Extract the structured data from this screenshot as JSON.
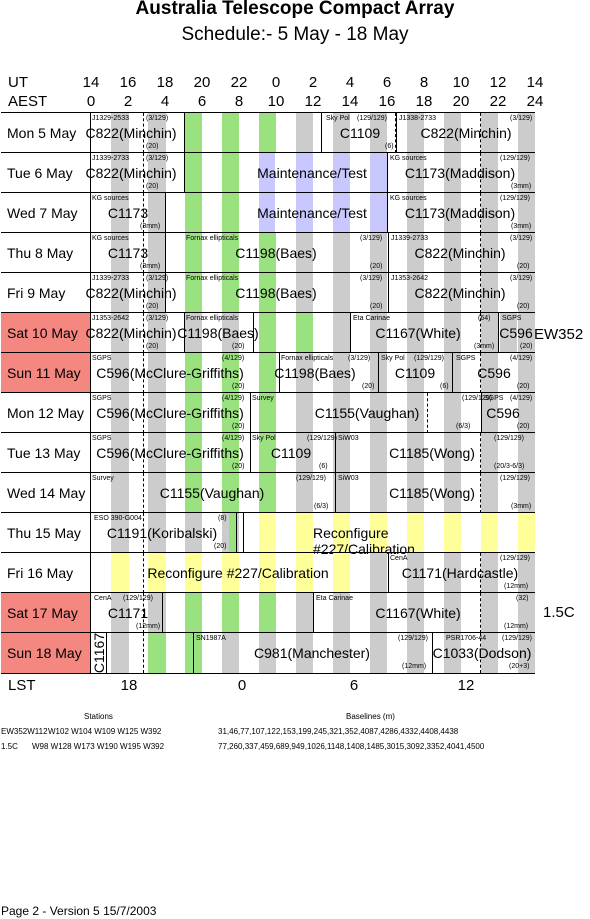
{
  "title": "Australia Telescope Compact Array",
  "subtitle": "Schedule:- 5  May - 18 May",
  "axes": {
    "ut_label": "UT",
    "aest_label": "AEST",
    "lst_label": "LST",
    "ut_ticks": [
      "14",
      "16",
      "18",
      "20",
      "22",
      "0",
      "2",
      "4",
      "6",
      "8",
      "10",
      "12",
      "14"
    ],
    "aest_ticks": [
      "0",
      "2",
      "4",
      "6",
      "8",
      "10",
      "12",
      "14",
      "16",
      "18",
      "20",
      "22",
      "24"
    ],
    "lst_ticks": [
      "18",
      "0",
      "6",
      "12"
    ]
  },
  "colors": {
    "weekend": "#f4877f",
    "green": "#99e27f",
    "gray": "#cccccc",
    "lavender": "#c8c8ff",
    "yellow": "#ffff99"
  },
  "days": [
    {
      "label": "Mon  5  May",
      "weekend": false,
      "small": [
        "J1329-2533",
        "(3/129)",
        "(20)",
        "Sky Pol",
        "(129/129)",
        "(6)",
        "J1338-2733",
        "(3/129)"
      ],
      "big": [
        "C822(Minchin)",
        "C1109",
        "C822(Minchin)"
      ]
    },
    {
      "label": "Tue  6  May",
      "weekend": false,
      "small": [
        "J1339-2733",
        "(3/129)",
        "(20)",
        "KG sources",
        "(129/129)",
        "(3mm)"
      ],
      "big": [
        "C822(Minchin)",
        "Maintenance/Test",
        "C1173(Maddison)"
      ]
    },
    {
      "label": "Wed  7  May",
      "weekend": false,
      "small": [
        "KG sources",
        "(3mm)",
        "KG sources",
        "(129/129)",
        "(3mm)"
      ],
      "big": [
        "C1173",
        "Maintenance/Test",
        "C1173(Maddison)"
      ]
    },
    {
      "label": "Thu  8  May",
      "weekend": false,
      "small": [
        "KG sources",
        "(3mm)",
        "Fornax ellipticals",
        "(3/129)",
        "(20)",
        "J1339-2733",
        "(3/129)",
        "(20)"
      ],
      "big": [
        "C1173",
        "C1198(Baes)",
        "C822(Minchin)"
      ]
    },
    {
      "label": "Fri   9  May",
      "weekend": false,
      "small": [
        "J1339-2733",
        "(3/129)",
        "(20)",
        "Fornax ellipticals",
        "(3/129)",
        "(20)",
        "J1353-2642",
        "(3/129)",
        "(20)"
      ],
      "big": [
        "C822(Minchin)",
        "C1198(Baes)",
        "C822(Minchin)"
      ]
    },
    {
      "label": "Sat  10 May",
      "weekend": true,
      "small": [
        "J1353-2642",
        "(3/129)",
        "(20)",
        "Fornax ellipticals",
        "(20)",
        "Eta Carinae",
        "(64)",
        "(3mm)",
        "SGPS",
        "(20)"
      ],
      "big": [
        "C822(Minchin)",
        "C1198(Baes)",
        "C1167(White)",
        "C596"
      ]
    },
    {
      "label": "Sun  11 May",
      "weekend": true,
      "small": [
        "SGPS",
        "(4/129)",
        "(20)",
        "Fornax ellipticals",
        "(3/129)",
        "(20)",
        "Sky Pol",
        "(129/129)",
        "(6)",
        "SGPS",
        "(4/129)",
        "(20)"
      ],
      "big": [
        "C596(McClure-Griffiths)",
        "C1198(Baes)",
        "C1109",
        "C596"
      ]
    },
    {
      "label": "Mon  12 May",
      "weekend": false,
      "small": [
        "SGPS",
        "(4/129)",
        "(20)",
        "Survey",
        "(129/129)",
        "(6/3)",
        "SGPS",
        "(4/129)",
        "(20)"
      ],
      "big": [
        "C596(McClure-Griffiths)",
        "C1155(Vaughan)",
        "C596"
      ]
    },
    {
      "label": "Tue  13 May",
      "weekend": false,
      "small": [
        "SGPS",
        "(4/129)",
        "(20)",
        "Sky Pol",
        "(129/129)",
        "(6)",
        "SiW03",
        "(129/129)",
        "(20/3-6/3)"
      ],
      "big": [
        "C596(McClure-Griffiths)",
        "C1109",
        "C1185(Wong)"
      ]
    },
    {
      "label": "Wed  14 May",
      "weekend": false,
      "small": [
        "Survey",
        "(129/129)",
        "(6/3)",
        "SiW03",
        "(129/129)",
        "(3mm)"
      ],
      "big": [
        "C1155(Vaughan)",
        "C1185(Wong)"
      ]
    },
    {
      "label": "Thu  15 May",
      "weekend": false,
      "small": [
        "ESO 390-G004",
        "(8)",
        "(20)"
      ],
      "big": [
        "C1191(Koribalski)",
        "Reconfigure #227/Calibration"
      ]
    },
    {
      "label": "Fri   16 May",
      "weekend": false,
      "small": [
        "CenA",
        "(129/129)",
        "(12mm)"
      ],
      "big": [
        "Reconfigure #227/Calibration",
        "C1171(Hardcastle)"
      ]
    },
    {
      "label": "Sat  17 May",
      "weekend": true,
      "small": [
        "CenA",
        "(129/129)",
        "(12mm)",
        "Eta Carinae",
        "(32)",
        "(12mm)"
      ],
      "big": [
        "C1171",
        "C1167(White)"
      ]
    },
    {
      "label": "Sun  18 May",
      "weekend": true,
      "small": [
        "SN1987A",
        "(129/129)",
        "(12mm)",
        "PSR1706-44",
        "(129/129)",
        "(20+3)"
      ],
      "big": [
        "C1167",
        "C981(Manchester)",
        "C1033(Dodson)"
      ]
    }
  ],
  "array_configs": [
    {
      "name": "EW352",
      "label_row": "Sat  10 May"
    },
    {
      "name": "1.5C",
      "label_row": "Sat  17 May"
    }
  ],
  "footer": {
    "stations_header": "Stations",
    "baselines_header": "Baselines (m)",
    "configs": [
      {
        "name": "EW352",
        "stations": "W102 W104 W109 W125 W392",
        "name_prefix": "EW352W112",
        "baselines": "31,46,77,107,122,153,199,245,321,352,4087,4286,4332,4408,4438"
      },
      {
        "name": "1.5C",
        "stations": "W98 W128 W173 W190 W195 W392",
        "baselines": "77,260,337,459,689,949,1026,1148,1408,1485,3015,3092,3352,4041,4500"
      }
    ],
    "page_info": "Page 2 - Version 5  15/7/2003"
  }
}
